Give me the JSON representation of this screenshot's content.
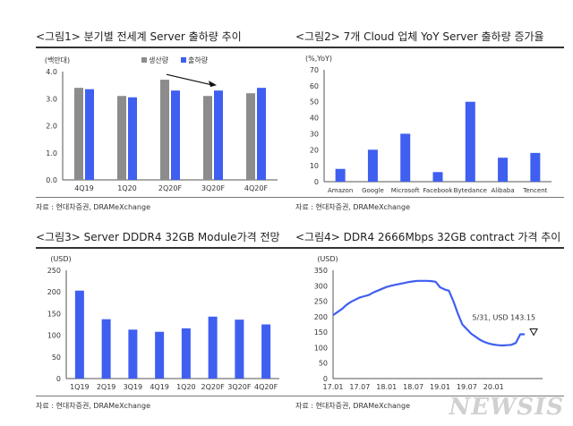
{
  "colors": {
    "blue": "#3f5ff0",
    "gray": "#8c8c8c",
    "line": "#3f5ff0"
  },
  "panels": [
    {
      "title": "<그림1> 분기별 전세계 Server 출하량 추이",
      "source": "자료 : 현대차증권, DRAMeXchange"
    },
    {
      "title": "<그림2> 7개 Cloud 업체 YoY Server 출하량 증가율",
      "source": "자료 : 현대차증권, DRAMeXchange"
    },
    {
      "title": "<그림3> Server DDDR4 32GB Module가격 전망",
      "source": "자료 : 현대차증권, DRAMeXchange"
    },
    {
      "title": "<그림4> DDR4 2666Mbps 32GB contract 가격 추이",
      "source": "자료 : 현대차증권, DRAMeXchange"
    }
  ],
  "watermark": "NEWSIS",
  "chart_data": [
    {
      "type": "bar",
      "ylabel": "(백만대)",
      "ylim": [
        0,
        4
      ],
      "yticks": [
        "0.0",
        "1.0",
        "2.0",
        "3.0",
        "4.0"
      ],
      "categories": [
        "4Q19",
        "1Q20",
        "2Q20F",
        "3Q20F",
        "4Q20F"
      ],
      "series": [
        {
          "name": "생산량",
          "color": "#8c8c8c",
          "values": [
            3.4,
            3.1,
            3.7,
            3.1,
            3.2
          ]
        },
        {
          "name": "출하량",
          "color": "#3f5ff0",
          "values": [
            3.35,
            3.05,
            3.3,
            3.3,
            3.4
          ]
        }
      ],
      "legend": "top-right",
      "annotation": "arrow pointing to 3Q20F"
    },
    {
      "type": "bar",
      "ylabel": "(%,YoY)",
      "ylim": [
        0,
        70
      ],
      "yticks": [
        "0",
        "10",
        "20",
        "30",
        "40",
        "50",
        "60",
        "70"
      ],
      "categories": [
        "Amazon",
        "Google",
        "Microsoft",
        "Facebook",
        "Bytedance",
        "Alibaba",
        "Tencent"
      ],
      "values": [
        8,
        20,
        30,
        6,
        50,
        15,
        18
      ]
    },
    {
      "type": "bar",
      "ylabel": "(USD)",
      "ylim": [
        0,
        250
      ],
      "yticks": [
        "0",
        "50",
        "100",
        "150",
        "200",
        "250"
      ],
      "categories": [
        "1Q19",
        "2Q19",
        "3Q19",
        "4Q19",
        "1Q20",
        "2Q20F",
        "3Q20F",
        "4Q20F"
      ],
      "values": [
        203,
        137,
        113,
        108,
        116,
        143,
        136,
        125
      ]
    },
    {
      "type": "line",
      "ylabel": "(USD)",
      "ylim": [
        0,
        350
      ],
      "yticks": [
        "0",
        "50",
        "100",
        "150",
        "200",
        "250",
        "300",
        "350"
      ],
      "xticks": [
        "17.01",
        "17.07",
        "18.01",
        "18.07",
        "19.01",
        "19.07",
        "20.01"
      ],
      "x": [
        "2017-01",
        "2017-02",
        "2017-03",
        "2017-04",
        "2017-05",
        "2017-06",
        "2017-07",
        "2017-08",
        "2017-09",
        "2017-10",
        "2017-11",
        "2017-12",
        "2018-01",
        "2018-02",
        "2018-03",
        "2018-04",
        "2018-05",
        "2018-06",
        "2018-07",
        "2018-08",
        "2018-09",
        "2018-10",
        "2018-11",
        "2018-12",
        "2019-01",
        "2019-02",
        "2019-03",
        "2019-04",
        "2019-05",
        "2019-06",
        "2019-07",
        "2019-08",
        "2019-09",
        "2019-10",
        "2019-11",
        "2019-12",
        "2020-01",
        "2020-02",
        "2020-03",
        "2020-04",
        "2020-05"
      ],
      "values": [
        205,
        215,
        225,
        238,
        248,
        255,
        262,
        266,
        270,
        278,
        284,
        290,
        296,
        300,
        303,
        306,
        309,
        312,
        314,
        316,
        316,
        316,
        315,
        313,
        295,
        288,
        284,
        250,
        210,
        175,
        160,
        145,
        135,
        125,
        118,
        113,
        110,
        108,
        107,
        108,
        109
      ],
      "tail": [
        115,
        143.15,
        143.15
      ],
      "tail_x": [
        "2020-06",
        "2020-07",
        "2020-08"
      ],
      "annotation": "5/31, USD 143.15"
    }
  ]
}
